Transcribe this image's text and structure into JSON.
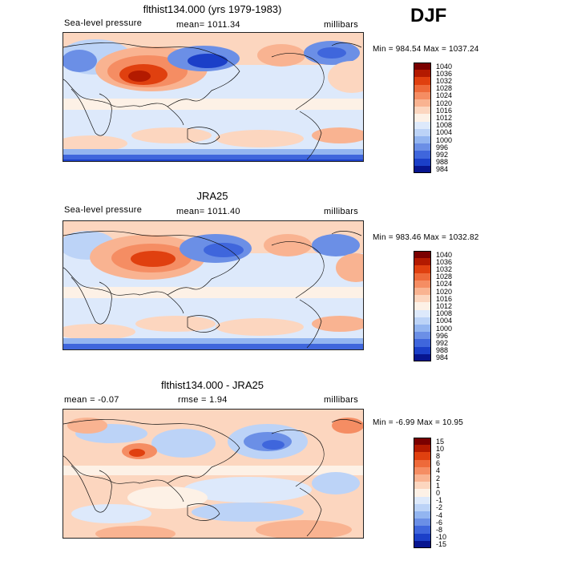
{
  "season": "DJF",
  "panels": [
    {
      "title": "flthist134.000 (yrs 1979-1983)",
      "left_label": "Sea-level pressure",
      "mid_label": "mean= 1011.34",
      "right_label": "millibars",
      "minmax": "Min = 984.54 Max = 1037.24",
      "colorbar": [
        "1040",
        "1036",
        "1032",
        "1028",
        "1024",
        "1020",
        "1016",
        "1012",
        "1008",
        "1004",
        "1000",
        "996",
        "992",
        "988",
        "984"
      ]
    },
    {
      "title": "JRA25",
      "left_label": "Sea-level pressure",
      "mid_label": "mean= 1011.40",
      "right_label": "millibars",
      "minmax": "Min = 983.46 Max = 1032.82",
      "colorbar": [
        "1040",
        "1036",
        "1032",
        "1028",
        "1024",
        "1020",
        "1016",
        "1012",
        "1008",
        "1004",
        "1000",
        "996",
        "992",
        "988",
        "984"
      ]
    },
    {
      "title": "flthist134.000 - JRA25",
      "left_label": "mean = -0.07",
      "mid_label": "rmse = 1.94",
      "right_label": "millibars",
      "minmax": "Min = -6.99 Max = 10.95",
      "colorbar": [
        "15",
        "10",
        "8",
        "6",
        "4",
        "2",
        "1",
        "0",
        "-1",
        "-2",
        "-4",
        "-6",
        "-8",
        "-10",
        "-15"
      ]
    }
  ],
  "palette": [
    "#7a0000",
    "#b31a00",
    "#e0400f",
    "#ee6a3a",
    "#f58d63",
    "#f9b391",
    "#fcd6bf",
    "#fdf1e6",
    "#dde9fb",
    "#bcd3f7",
    "#93b5f0",
    "#6b8fe6",
    "#3f66dc",
    "#1b3fc8",
    "#07158f"
  ]
}
